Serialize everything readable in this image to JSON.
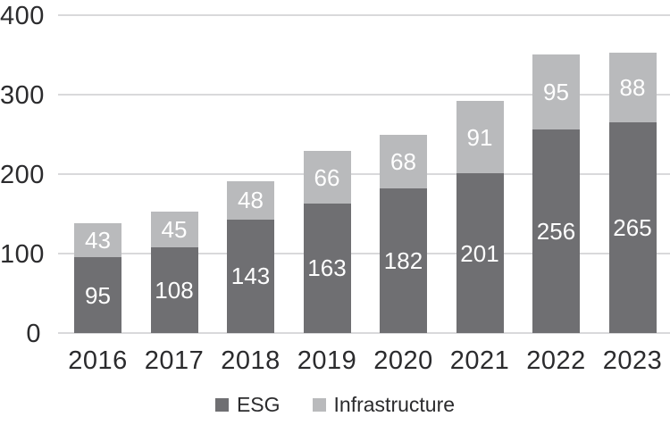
{
  "chart_data": {
    "type": "bar",
    "subtype": "stacked-vertical",
    "categories": [
      "2016",
      "2017",
      "2018",
      "2019",
      "2020",
      "2021",
      "2022",
      "2023"
    ],
    "series": [
      {
        "name": "ESG",
        "color": "#6f6f72",
        "values": [
          95,
          108,
          143,
          163,
          182,
          201,
          256,
          265
        ]
      },
      {
        "name": "Infrastructure",
        "color": "#b9babc",
        "values": [
          43,
          45,
          48,
          66,
          68,
          91,
          95,
          88
        ]
      }
    ],
    "title": "",
    "xlabel": "",
    "ylabel": "",
    "ylim": [
      0,
      400
    ],
    "y_ticks": [
      "0",
      "100",
      "200",
      "300",
      "400"
    ],
    "grid": "horizontal",
    "gridline_color": "#d9d9db",
    "value_label_color": "#ffffff",
    "axis_text_color": "#2b2b2d",
    "legend_position": "bottom-center"
  }
}
